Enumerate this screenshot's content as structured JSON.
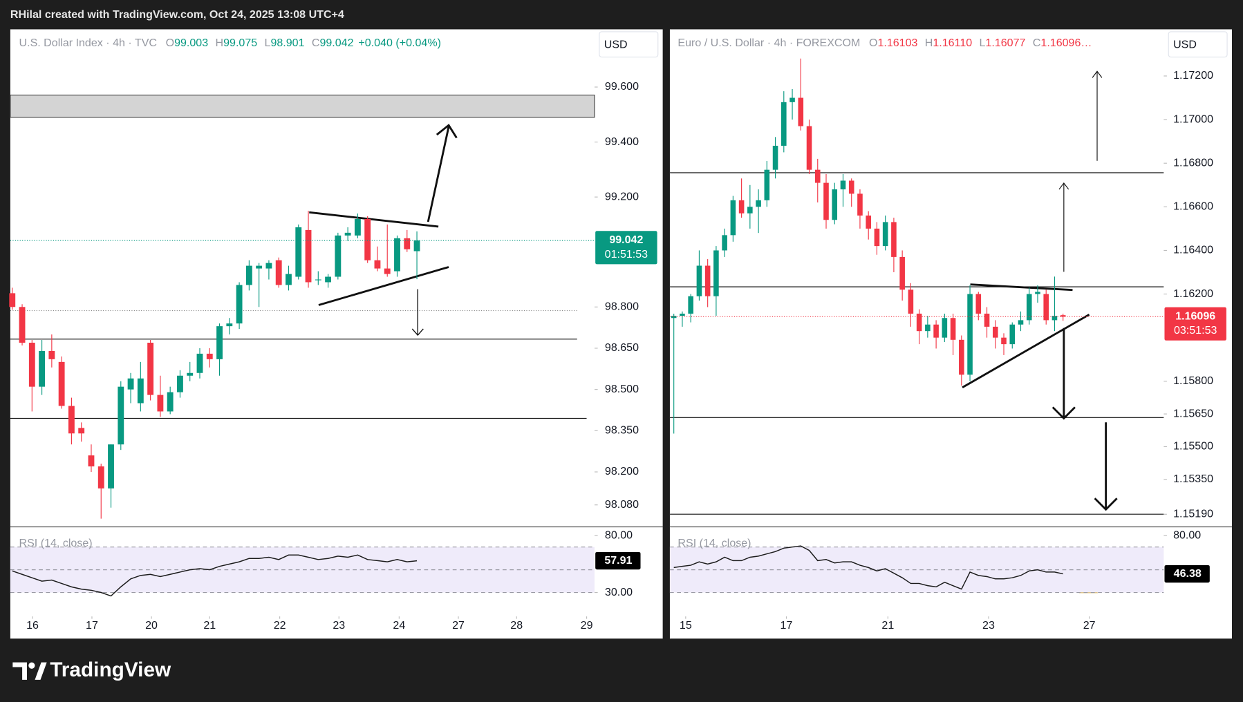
{
  "header": "RHilal created with TradingView.com, Oct 24, 2025 13:08 UTC+4",
  "footer": "TradingView",
  "chart_data": [
    {
      "type": "candlestick",
      "symbol": "U.S. Dollar Index · 4h · TVC",
      "header_items": [
        {
          "label": "O",
          "text": "99.003"
        },
        {
          "label": "H",
          "text": "99.075"
        },
        {
          "label": "L",
          "text": "98.901"
        },
        {
          "label": "C",
          "text": "99.042"
        }
      ],
      "change": "+0.040 (+0.04%)",
      "currency": "USD",
      "countdown": "01:51:53",
      "up_color": "#089981",
      "down_color": "#f23645",
      "header_color": "#089981",
      "open": [
        98.85,
        98.8,
        98.67,
        98.51,
        98.64,
        98.6,
        98.44,
        98.36,
        98.26,
        98.22,
        98.14,
        98.3,
        98.5,
        98.45,
        98.67,
        98.48,
        98.42,
        98.49,
        98.55,
        98.56,
        98.63,
        98.61,
        98.73,
        98.74,
        98.88,
        98.94,
        98.94,
        98.97,
        98.88,
        98.91,
        99.08,
        98.9,
        98.89,
        98.91,
        99.06,
        99.06,
        99.12,
        98.97,
        98.94,
        98.93,
        99.05,
        99.003
      ],
      "high": [
        98.87,
        98.81,
        98.68,
        98.68,
        98.7,
        98.62,
        98.47,
        98.38,
        98.3,
        98.23,
        98.3,
        98.53,
        98.56,
        98.6,
        98.68,
        98.55,
        98.51,
        98.57,
        98.6,
        98.65,
        98.65,
        98.74,
        98.76,
        98.89,
        98.97,
        98.96,
        98.97,
        98.98,
        98.95,
        99.1,
        99.15,
        98.93,
        98.92,
        99.07,
        99.09,
        99.14,
        99.13,
        99.02,
        99.1,
        99.06,
        99.08,
        99.075
      ],
      "low": [
        98.79,
        98.66,
        98.42,
        98.48,
        98.58,
        98.43,
        98.3,
        98.31,
        98.2,
        98.03,
        98.07,
        98.28,
        98.45,
        98.42,
        98.46,
        98.4,
        98.41,
        98.47,
        98.53,
        98.54,
        98.58,
        98.55,
        98.7,
        98.72,
        98.86,
        98.8,
        98.9,
        98.87,
        98.86,
        98.9,
        98.87,
        98.88,
        98.87,
        98.9,
        99.04,
        99.05,
        98.96,
        98.93,
        98.91,
        98.91,
        99.0,
        98.901
      ],
      "close": [
        98.8,
        98.67,
        98.51,
        98.64,
        98.61,
        98.44,
        98.34,
        98.34,
        98.22,
        98.14,
        98.3,
        98.51,
        98.54,
        98.54,
        98.48,
        98.42,
        98.49,
        98.55,
        98.56,
        98.63,
        98.61,
        98.73,
        98.74,
        98.88,
        98.95,
        98.95,
        98.96,
        98.88,
        98.92,
        99.09,
        98.89,
        98.9,
        98.91,
        99.06,
        99.07,
        99.12,
        98.97,
        98.94,
        98.92,
        99.05,
        99.01,
        99.042
      ],
      "ylim": [
        98.0,
        99.81
      ],
      "yticks": [
        {
          "value": 99.6,
          "label": "99.600"
        },
        {
          "value": 99.4,
          "label": "99.400"
        },
        {
          "value": 99.2,
          "label": "99.200"
        },
        {
          "value": 98.8,
          "label": "98.800"
        },
        {
          "value": 98.65,
          "label": "98.650"
        },
        {
          "value": 98.5,
          "label": "98.500"
        },
        {
          "value": 98.35,
          "label": "98.350"
        },
        {
          "value": 98.2,
          "label": "98.200"
        },
        {
          "value": 98.08,
          "label": "98.080"
        }
      ],
      "xlim": [
        -0.2,
        59
      ],
      "xticks": [
        {
          "value": 2.05,
          "label": "16"
        },
        {
          "value": 8.07,
          "label": "17"
        },
        {
          "value": 14.1,
          "label": "20"
        },
        {
          "value": 20.0,
          "label": "21"
        },
        {
          "value": 27.1,
          "label": "22"
        },
        {
          "value": 33.1,
          "label": "23"
        },
        {
          "value": 39.2,
          "label": "24"
        },
        {
          "value": 45.2,
          "label": "27"
        },
        {
          "value": 51.1,
          "label": "28"
        },
        {
          "value": 58.2,
          "label": "29"
        }
      ],
      "rsi": {
        "name": "RSI (14, close)",
        "values": [
          49,
          46,
          43,
          40,
          41,
          38,
          35,
          33,
          32,
          30,
          27,
          35,
          42,
          45,
          46,
          44,
          46,
          48,
          50,
          51,
          50,
          53,
          55,
          57,
          60,
          60,
          61,
          59,
          63,
          63,
          61,
          59,
          60,
          62,
          61,
          63,
          59,
          58,
          57,
          59,
          57,
          57.91
        ],
        "ylim": [
          9,
          87
        ],
        "yticks": [
          {
            "value": 80,
            "label": "80.00"
          },
          {
            "value": 30,
            "label": "30.00"
          }
        ],
        "bands": [
          30,
          50,
          70
        ]
      }
    },
    {
      "type": "candlestick",
      "symbol": "Euro / U.S. Dollar · 4h · FOREXCOM",
      "header_items": [
        {
          "label": "O",
          "text": "1.16103"
        },
        {
          "label": "H",
          "text": "1.16110"
        },
        {
          "label": "L",
          "text": "1.16077"
        },
        {
          "label": "C",
          "text": "1.16096…"
        }
      ],
      "currency": "USD",
      "countdown": "03:51:53",
      "up_color": "#089981",
      "down_color": "#f23645",
      "header_color": "#f23645",
      "open": [
        1.1609,
        1.161,
        1.1611,
        1.1619,
        1.1633,
        1.1619,
        1.164,
        1.1647,
        1.1663,
        1.1657,
        1.166,
        1.1663,
        1.1677,
        1.1688,
        1.1708,
        1.171,
        1.1697,
        1.1677,
        1.1671,
        1.1654,
        1.1668,
        1.1672,
        1.1666,
        1.1656,
        1.165,
        1.1642,
        1.1653,
        1.1637,
        1.1622,
        1.1611,
        1.1603,
        1.1606,
        1.16,
        1.1609,
        1.1599,
        1.1583,
        1.162,
        1.1611,
        1.1605,
        1.16,
        1.1597,
        1.1606,
        1.1608,
        1.162,
        1.162,
        1.1608,
        1.16103
      ],
      "high": [
        1.1611,
        1.1612,
        1.162,
        1.164,
        1.1636,
        1.1642,
        1.165,
        1.1665,
        1.1673,
        1.167,
        1.1668,
        1.1681,
        1.1692,
        1.1713,
        1.1714,
        1.1728,
        1.17,
        1.1682,
        1.1675,
        1.1671,
        1.1675,
        1.1673,
        1.1668,
        1.1658,
        1.1653,
        1.1656,
        1.1655,
        1.164,
        1.1625,
        1.1613,
        1.161,
        1.1608,
        1.1611,
        1.1611,
        1.1601,
        1.1624,
        1.1621,
        1.1614,
        1.1608,
        1.1602,
        1.1607,
        1.1612,
        1.1623,
        1.1624,
        1.1622,
        1.1628,
        1.1611
      ],
      "low": [
        1.1556,
        1.1605,
        1.1607,
        1.1617,
        1.1614,
        1.161,
        1.1637,
        1.1644,
        1.1655,
        1.165,
        1.1648,
        1.166,
        1.1673,
        1.1685,
        1.17,
        1.1695,
        1.1675,
        1.1662,
        1.165,
        1.1652,
        1.166,
        1.166,
        1.165,
        1.1645,
        1.1638,
        1.164,
        1.163,
        1.1617,
        1.1605,
        1.1597,
        1.16,
        1.1595,
        1.1598,
        1.1592,
        1.1578,
        1.158,
        1.1608,
        1.16,
        1.1595,
        1.1592,
        1.1595,
        1.1603,
        1.1606,
        1.1616,
        1.1606,
        1.1603,
        1.16077
      ],
      "close": [
        1.161,
        1.1611,
        1.1619,
        1.1633,
        1.1619,
        1.164,
        1.1647,
        1.1663,
        1.1657,
        1.166,
        1.1663,
        1.1677,
        1.1688,
        1.1708,
        1.171,
        1.1697,
        1.1677,
        1.1671,
        1.1654,
        1.1668,
        1.1672,
        1.1666,
        1.1656,
        1.165,
        1.1642,
        1.1653,
        1.1637,
        1.1622,
        1.1611,
        1.1603,
        1.1606,
        1.16,
        1.1609,
        1.1599,
        1.1583,
        1.162,
        1.1611,
        1.1605,
        1.16,
        1.1597,
        1.1606,
        1.1608,
        1.162,
        1.1621,
        1.1608,
        1.161,
        1.16096
      ],
      "ylim": [
        1.15132,
        1.17414
      ],
      "yticks": [
        {
          "value": 1.172,
          "label": "1.17200"
        },
        {
          "value": 1.17,
          "label": "1.17000"
        },
        {
          "value": 1.168,
          "label": "1.16800"
        },
        {
          "value": 1.166,
          "label": "1.16600"
        },
        {
          "value": 1.164,
          "label": "1.16400"
        },
        {
          "value": 1.162,
          "label": "1.16200"
        },
        {
          "value": 1.158,
          "label": "1.15800"
        },
        {
          "value": 1.1565,
          "label": "1.15650"
        },
        {
          "value": 1.155,
          "label": "1.15500"
        },
        {
          "value": 1.1535,
          "label": "1.15350"
        },
        {
          "value": 1.1519,
          "label": "1.15190"
        }
      ],
      "xlim": [
        -0.47,
        57.9
      ],
      "xticks": [
        {
          "value": 1.4,
          "label": "15"
        },
        {
          "value": 13.3,
          "label": "17"
        },
        {
          "value": 25.3,
          "label": "21"
        },
        {
          "value": 37.2,
          "label": "23"
        },
        {
          "value": 49.1,
          "label": "27"
        }
      ],
      "rsi": {
        "name": "RSI (14, close)",
        "values": [
          52,
          53,
          54,
          57,
          55,
          57,
          61,
          58,
          58,
          61,
          62,
          64,
          66,
          69,
          70,
          71,
          67,
          58,
          59,
          56,
          57,
          57,
          54,
          52,
          49,
          51,
          47,
          43,
          38,
          38,
          36,
          35,
          39,
          36,
          33,
          48,
          45,
          44,
          42,
          42,
          43,
          45,
          49,
          50,
          48,
          48,
          46.38
        ],
        "ylim": [
          9,
          87
        ],
        "yticks": [
          {
            "value": 80,
            "label": "80.00"
          }
        ],
        "bands": [
          30,
          50,
          70
        ]
      }
    }
  ]
}
